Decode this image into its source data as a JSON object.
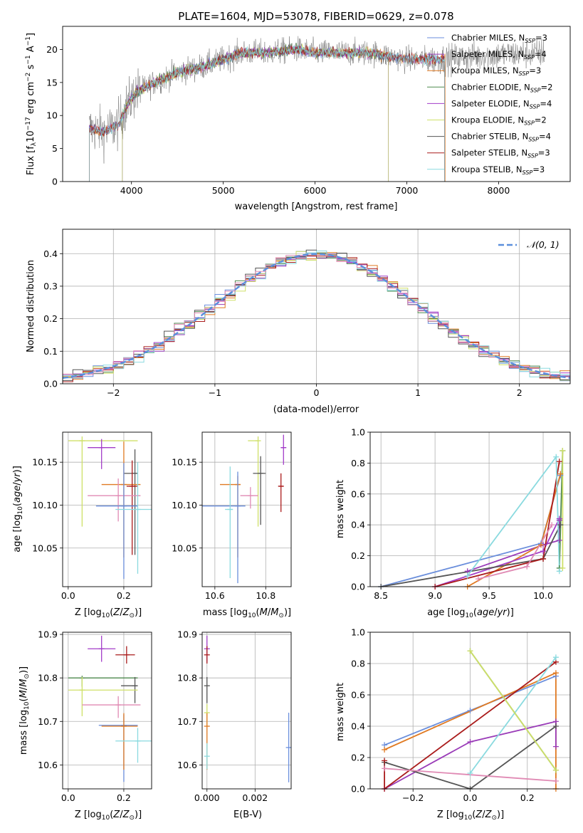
{
  "colors": {
    "chab_miles": "#6a8edc",
    "salp_miles": "#9a3cb8",
    "krou_miles": "#e07a22",
    "chab_elodie": "#4f8a4f",
    "salp_elodie": "#a23cc8",
    "krou_elodie": "#cfe068",
    "chab_stelib": "#555555",
    "salp_stelib": "#aa1c1c",
    "krou_stelib": "#8adadf",
    "pink": "#e08ab4",
    "gray_spec": "#777777",
    "normal_curve": "#5b8fdc"
  },
  "chart_data": [
    {
      "id": "spectrum",
      "type": "line",
      "title": "PLATE=1604, MJD=53078, FIBERID=0629, z=0.078",
      "xlabel": "wavelength [Angstrom, rest frame]",
      "ylabel": "Flux [f_λ10^-17 erg cm^-2 s^-1 A^-1]",
      "xlim": [
        3250,
        8780
      ],
      "ylim": [
        0,
        23.5
      ],
      "xticks": [
        4000,
        5000,
        6000,
        7000,
        8000
      ],
      "yticks": [
        0,
        5,
        10,
        15,
        20
      ],
      "legend_position": "upper right",
      "legend": [
        {
          "label": "Chabrier MILES, N_SSP=3",
          "color_key": "chab_miles"
        },
        {
          "label": "Salpeter MILES, N_SSP=4",
          "color_key": "salp_miles"
        },
        {
          "label": "Kroupa MILES, N_SSP=3",
          "color_key": "krou_miles"
        },
        {
          "label": "Chabrier ELODIE, N_SSP=2",
          "color_key": "chab_elodie"
        },
        {
          "label": "Salpeter ELODIE, N_SSP=4",
          "color_key": "salp_elodie"
        },
        {
          "label": "Kroupa ELODIE, N_SSP=2",
          "color_key": "krou_elodie"
        },
        {
          "label": "Chabrier STELIB, N_SSP=4",
          "color_key": "chab_stelib"
        },
        {
          "label": "Salpeter STELIB, N_SSP=3",
          "color_key": "salp_stelib"
        },
        {
          "label": "Kroupa STELIB, N_SSP=3",
          "color_key": "krou_stelib"
        }
      ],
      "continuum": {
        "wavelength": [
          3560,
          3700,
          3850,
          3950,
          4050,
          4250,
          4500,
          4800,
          5000,
          5200,
          5500,
          5800,
          6000,
          6300,
          6600,
          7000,
          7400,
          7800,
          8200,
          8500
        ],
        "flux": [
          8,
          7.5,
          8.5,
          11.5,
          13.5,
          15,
          16.5,
          17.5,
          18.5,
          19.5,
          19.5,
          20,
          19.5,
          19.5,
          19.5,
          18.5,
          18.5,
          19,
          19.3,
          19.5
        ]
      },
      "model_ranges": [
        {
          "color_key": "chab_miles",
          "start": 3540,
          "end": 7410
        },
        {
          "color_key": "salp_miles",
          "start": 3540,
          "end": 7410
        },
        {
          "color_key": "krou_miles",
          "start": 3540,
          "end": 7420
        },
        {
          "color_key": "chab_elodie",
          "start": 3900,
          "end": 6800
        },
        {
          "color_key": "salp_elodie",
          "start": 3900,
          "end": 6800
        },
        {
          "color_key": "krou_elodie",
          "start": 3900,
          "end": 6800
        },
        {
          "color_key": "chab_stelib",
          "start": 3540,
          "end": 7410
        },
        {
          "color_key": "salp_stelib",
          "start": 3540,
          "end": 7410
        },
        {
          "color_key": "krou_stelib",
          "start": 3540,
          "end": 7410
        }
      ]
    },
    {
      "id": "residuals",
      "type": "histogram",
      "xlabel": "(data-model)/error",
      "ylabel": "Normed distribution",
      "xlim": [
        -2.5,
        2.5
      ],
      "ylim": [
        0,
        0.475
      ],
      "xticks": [
        -2,
        -1,
        0,
        1,
        2
      ],
      "yticks": [
        0.0,
        0.1,
        0.2,
        0.3,
        0.4
      ],
      "grid": true,
      "legend_position": "upper right",
      "curve_label": "𝒩(0, 1)",
      "bin_width": 0.1
    },
    {
      "id": "age_vs_Z",
      "type": "errorbar",
      "xlabel": "Z [log10(Z/Z⊙)]",
      "ylabel": "age  [log10(age/yr)]",
      "xlim": [
        -0.02,
        0.3
      ],
      "ylim": [
        10.005,
        10.185
      ],
      "xticks": [
        0.0,
        0.2
      ],
      "yticks": [
        10.05,
        10.1,
        10.15
      ],
      "grid": true,
      "points": [
        {
          "color_key": "krou_elodie",
          "x": 0.05,
          "y": 10.175,
          "xerr": [
            0.05,
            0.2
          ],
          "yerr": [
            0.1,
            0.005
          ]
        },
        {
          "color_key": "salp_elodie",
          "x": 0.12,
          "y": 10.167,
          "xerr": [
            0.05,
            0.05
          ],
          "yerr": [
            0.025,
            0.01
          ]
        },
        {
          "color_key": "chab_stelib",
          "x": 0.24,
          "y": 10.137,
          "xerr": [
            0.04,
            0.01
          ],
          "yerr": [
            0.095,
            0.028
          ]
        },
        {
          "color_key": "krou_miles",
          "x": 0.2,
          "y": 10.124,
          "xerr": [
            0.08,
            0.06
          ],
          "yerr": [
            0.085,
            0.05
          ]
        },
        {
          "color_key": "salp_stelib",
          "x": 0.23,
          "y": 10.122,
          "xerr": [
            0.02,
            0.02
          ],
          "yerr": [
            0.08,
            0.03
          ]
        },
        {
          "color_key": "pink",
          "x": 0.18,
          "y": 10.111,
          "xerr": [
            0.11,
            0.08
          ],
          "yerr": [
            0.03,
            0.02
          ]
        },
        {
          "color_key": "chab_miles",
          "x": 0.2,
          "y": 10.099,
          "xerr": [
            0.1,
            0.05
          ],
          "yerr": [
            0.085,
            0.05
          ]
        },
        {
          "color_key": "krou_stelib",
          "x": 0.25,
          "y": 10.095,
          "xerr": [
            0.08,
            0.05
          ],
          "yerr": [
            0.075,
            0.055
          ]
        }
      ]
    },
    {
      "id": "age_vs_mass",
      "type": "errorbar",
      "xlabel": "mass [log10(M/M⊙)]",
      "ylabel": "",
      "xlim": [
        10.55,
        10.9
      ],
      "ylim": [
        10.005,
        10.185
      ],
      "xticks": [
        10.6,
        10.8
      ],
      "yticks": [
        10.05,
        10.1,
        10.15
      ],
      "grid": true,
      "points": [
        {
          "color_key": "krou_elodie",
          "x": 10.77,
          "y": 10.175,
          "xerr": [
            0.04,
            0.0
          ],
          "yerr": [
            0.1,
            0.005
          ]
        },
        {
          "color_key": "salp_elodie",
          "x": 10.87,
          "y": 10.167,
          "xerr": [
            0.01,
            0.01
          ],
          "yerr": [
            0.02,
            0.015
          ]
        },
        {
          "color_key": "chab_stelib",
          "x": 10.78,
          "y": 10.137,
          "xerr": [
            0.03,
            0.02
          ],
          "yerr": [
            0.06,
            0.02
          ]
        },
        {
          "color_key": "krou_miles",
          "x": 10.69,
          "y": 10.124,
          "xerr": [
            0.07,
            0.01
          ],
          "yerr": [
            0.085,
            0.01
          ]
        },
        {
          "color_key": "salp_stelib",
          "x": 10.86,
          "y": 10.122,
          "xerr": [
            0.01,
            0.01
          ],
          "yerr": [
            0.03,
            0.015
          ]
        },
        {
          "color_key": "pink",
          "x": 10.74,
          "y": 10.111,
          "xerr": [
            0.04,
            0.03
          ],
          "yerr": [
            0.015,
            0.01
          ]
        },
        {
          "color_key": "chab_miles",
          "x": 10.69,
          "y": 10.099,
          "xerr": [
            0.14,
            0.03
          ],
          "yerr": [
            0.09,
            0.04
          ]
        },
        {
          "color_key": "krou_stelib",
          "x": 10.66,
          "y": 10.095,
          "xerr": [
            0.02,
            0.01
          ],
          "yerr": [
            0.08,
            0.05
          ]
        }
      ]
    },
    {
      "id": "weight_vs_age",
      "type": "line",
      "xlabel": "age  [log10(age/yr)]",
      "ylabel": "mass weight",
      "xlim": [
        8.4,
        10.25
      ],
      "ylim": [
        0,
        1
      ],
      "xticks": [
        8.5,
        9.0,
        9.5,
        10.0
      ],
      "yticks": [
        0.0,
        0.2,
        0.4,
        0.6,
        0.8,
        1.0
      ],
      "grid": true,
      "series": [
        {
          "color_key": "chab_miles",
          "x": [
            8.5,
            9.98,
            10.16
          ],
          "y": [
            0.0,
            0.28,
            0.72
          ]
        },
        {
          "color_key": "salp_miles",
          "x": [
            9.3,
            10.0,
            10.15,
            10.15
          ],
          "y": [
            0.1,
            0.27,
            0.3,
            0.43
          ]
        },
        {
          "color_key": "krou_miles",
          "x": [
            9.3,
            9.98,
            10.16
          ],
          "y": [
            0.0,
            0.27,
            0.73
          ]
        },
        {
          "color_key": "chab_elodie",
          "x": [
            10.15,
            10.18
          ],
          "y": [
            0.12,
            0.88
          ]
        },
        {
          "color_key": "salp_elodie",
          "x": [
            9.0,
            10.0,
            10.15
          ],
          "y": [
            0.0,
            0.23,
            0.44
          ]
        },
        {
          "color_key": "krou_elodie",
          "x": [
            10.18,
            10.18
          ],
          "y": [
            0.12,
            0.88
          ]
        },
        {
          "color_key": "chab_stelib",
          "x": [
            8.5,
            10.0,
            10.16
          ],
          "y": [
            0.0,
            0.18,
            0.4
          ]
        },
        {
          "color_key": "salp_stelib",
          "x": [
            9.0,
            10.0,
            10.15
          ],
          "y": [
            0.0,
            0.18,
            0.81
          ]
        },
        {
          "color_key": "krou_stelib",
          "x": [
            9.3,
            10.12,
            10.15
          ],
          "y": [
            0.07,
            0.84,
            0.1
          ]
        },
        {
          "color_key": "pink",
          "x": [
            9.4,
            9.85,
            10.08
          ],
          "y": [
            0.05,
            0.13,
            0.4
          ]
        }
      ]
    },
    {
      "id": "mass_vs_Z",
      "type": "errorbar",
      "xlabel": "Z [log10(Z/Z⊙)]",
      "ylabel": "mass [log10(M/M⊙)]",
      "xlim": [
        -0.02,
        0.3
      ],
      "ylim": [
        10.545,
        10.905
      ],
      "xticks": [
        0.0,
        0.2
      ],
      "yticks": [
        10.6,
        10.7,
        10.8,
        10.9
      ],
      "grid": true,
      "points": [
        {
          "color_key": "salp_elodie",
          "x": 0.12,
          "y": 10.867,
          "xerr": [
            0.05,
            0.05
          ],
          "yerr": [
            0.03,
            0.03
          ]
        },
        {
          "color_key": "salp_stelib",
          "x": 0.21,
          "y": 10.853,
          "xerr": [
            0.04,
            0.03
          ],
          "yerr": [
            0.02,
            0.02
          ]
        },
        {
          "color_key": "chab_elodie",
          "x": 0.05,
          "y": 10.8,
          "xerr": [
            0.05,
            0.2
          ],
          "yerr": [
            0.02,
            0.005
          ]
        },
        {
          "color_key": "chab_stelib",
          "x": 0.24,
          "y": 10.782,
          "xerr": [
            0.05,
            0.01
          ],
          "yerr": [
            0.04,
            0.02
          ]
        },
        {
          "color_key": "krou_elodie",
          "x": 0.05,
          "y": 10.772,
          "xerr": [
            0.05,
            0.2
          ],
          "yerr": [
            0.06,
            0.03
          ]
        },
        {
          "color_key": "pink",
          "x": 0.18,
          "y": 10.738,
          "xerr": [
            0.13,
            0.08
          ],
          "yerr": [
            0.03,
            0.02
          ]
        },
        {
          "color_key": "chab_miles",
          "x": 0.2,
          "y": 10.691,
          "xerr": [
            0.09,
            0.05
          ],
          "yerr": [
            0.13,
            0.025
          ]
        },
        {
          "color_key": "krou_miles",
          "x": 0.2,
          "y": 10.689,
          "xerr": [
            0.08,
            0.05
          ],
          "yerr": [
            0.1,
            0.03
          ]
        },
        {
          "color_key": "krou_stelib",
          "x": 0.25,
          "y": 10.655,
          "xerr": [
            0.08,
            0.05
          ],
          "yerr": [
            0.05,
            0.03
          ]
        }
      ]
    },
    {
      "id": "mass_vs_ebv",
      "type": "errorbar",
      "xlabel": "E(B-V)",
      "ylabel": "",
      "xlim": [
        -0.0002,
        0.0035
      ],
      "ylim": [
        10.545,
        10.905
      ],
      "xticks": [
        0.0,
        0.002
      ],
      "yticks": [
        10.6,
        10.7,
        10.8,
        10.9
      ],
      "grid": true,
      "points": [
        {
          "color_key": "salp_elodie",
          "x": 0.0,
          "y": 10.867,
          "xerr": [
            0,
            0
          ],
          "yerr": [
            0.03,
            0.03
          ]
        },
        {
          "color_key": "salp_stelib",
          "x": 0.0,
          "y": 10.853,
          "xerr": [
            0,
            0
          ],
          "yerr": [
            0.02,
            0.02
          ]
        },
        {
          "color_key": "chab_stelib",
          "x": 0.0,
          "y": 10.782,
          "xerr": [
            0,
            0
          ],
          "yerr": [
            0.04,
            0.02
          ]
        },
        {
          "color_key": "krou_elodie",
          "x": 0.0,
          "y": 10.72,
          "xerr": [
            0,
            0
          ],
          "yerr": [
            0.03,
            0.02
          ]
        },
        {
          "color_key": "krou_miles",
          "x": 0.0,
          "y": 10.689,
          "xerr": [
            0,
            0
          ],
          "yerr": [
            0.1,
            0.03
          ]
        },
        {
          "color_key": "krou_stelib",
          "x": 0.0,
          "y": 10.62,
          "xerr": [
            0,
            0
          ],
          "yerr": [
            0.03,
            0.03
          ]
        },
        {
          "color_key": "chab_miles",
          "x": 0.0034,
          "y": 10.64,
          "xerr": [
            0,
            0
          ],
          "yerr": [
            0.08,
            0.08
          ]
        }
      ]
    },
    {
      "id": "weight_vs_Z",
      "type": "line",
      "xlabel": "Z [log10(Z/Z⊙)]",
      "ylabel": "mass weight",
      "xlim": [
        -0.35,
        0.35
      ],
      "ylim": [
        0,
        1
      ],
      "xticks": [
        -0.2,
        0.0,
        0.2
      ],
      "yticks": [
        0.0,
        0.2,
        0.4,
        0.6,
        0.8,
        1.0
      ],
      "grid": true,
      "series": [
        {
          "color_key": "chab_miles",
          "x": [
            -0.3,
            0.0,
            0.3
          ],
          "y": [
            0.28,
            0.5,
            0.72
          ]
        },
        {
          "color_key": "krou_miles",
          "x": [
            -0.3,
            0.3,
            0.3
          ],
          "y": [
            0.25,
            0.74,
            0.0
          ]
        },
        {
          "color_key": "salp_miles",
          "x": [
            -0.3,
            0.0,
            0.3,
            0.3
          ],
          "y": [
            0.0,
            0.3,
            0.43,
            0.27
          ]
        },
        {
          "color_key": "chab_stelib",
          "x": [
            -0.3,
            0.0,
            0.3
          ],
          "y": [
            0.17,
            0.0,
            0.4
          ]
        },
        {
          "color_key": "salp_stelib",
          "x": [
            -0.3,
            -0.3,
            0.3
          ],
          "y": [
            0.18,
            0.0,
            0.81
          ]
        },
        {
          "color_key": "krou_stelib",
          "x": [
            0.0,
            0.3
          ],
          "y": [
            0.1,
            0.84
          ]
        },
        {
          "color_key": "pink",
          "x": [
            -0.3,
            0.3
          ],
          "y": [
            0.13,
            0.05
          ]
        },
        {
          "color_key": "chab_elodie",
          "x": [
            0.0,
            0.3
          ],
          "y": [
            0.88,
            0.12
          ]
        },
        {
          "color_key": "krou_elodie",
          "x": [
            0.0,
            0.3
          ],
          "y": [
            0.88,
            0.12
          ]
        }
      ]
    }
  ]
}
